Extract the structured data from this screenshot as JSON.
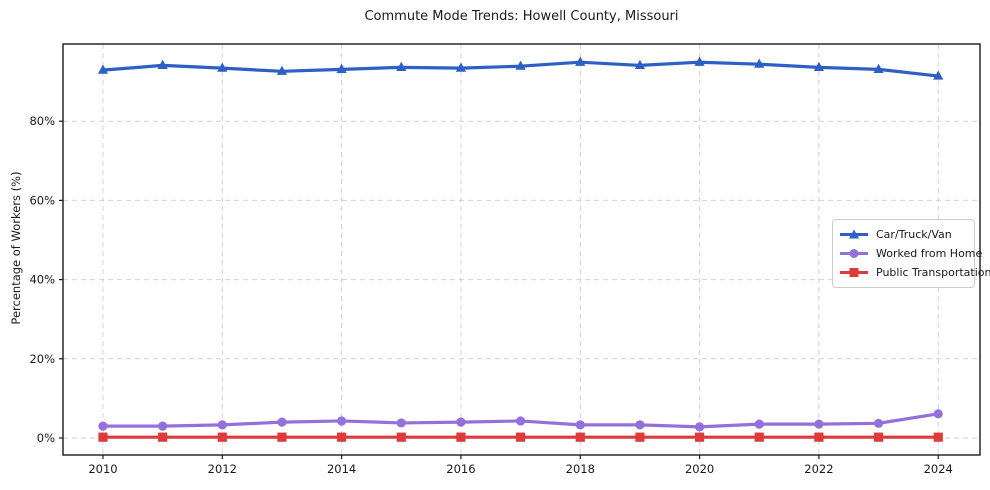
{
  "chart_data": {
    "type": "line",
    "title": "Commute Mode Trends: Howell County, Missouri",
    "xlabel": "",
    "ylabel": "Percentage of Workers (%)",
    "x": [
      2010,
      2011,
      2012,
      2013,
      2014,
      2015,
      2016,
      2017,
      2018,
      2019,
      2020,
      2021,
      2022,
      2023,
      2024
    ],
    "series": [
      {
        "name": "Car/Truck/Van",
        "color": "#2d5fc5",
        "marker": "triangle",
        "values": [
          92.9,
          94.1,
          93.4,
          92.6,
          93.1,
          93.6,
          93.4,
          93.9,
          94.9,
          94.1,
          94.9,
          94.4,
          93.6,
          93.1,
          91.4
        ]
      },
      {
        "name": "Worked from Home",
        "color": "#9370db",
        "marker": "circle",
        "values": [
          3.0,
          3.0,
          3.3,
          4.0,
          4.3,
          3.8,
          4.0,
          4.3,
          3.3,
          3.3,
          2.8,
          3.5,
          3.5,
          3.7,
          6.1
        ]
      },
      {
        "name": "Public Transportation",
        "color": "#dd3b3b",
        "marker": "square",
        "values": [
          0.2,
          0.2,
          0.2,
          0.2,
          0.2,
          0.2,
          0.2,
          0.2,
          0.2,
          0.2,
          0.2,
          0.2,
          0.2,
          0.2,
          0.2
        ]
      }
    ],
    "xticks": [
      2010,
      2012,
      2014,
      2016,
      2018,
      2020,
      2022,
      2024
    ],
    "yticks": [
      0,
      20,
      40,
      60,
      80
    ],
    "ytick_suffix": "%",
    "xlim": [
      2009.33,
      2024.7
    ],
    "ylim": [
      -4.3,
      99.5
    ],
    "grid": true,
    "grid_style": "dashed",
    "legend_position": "right-middle",
    "axis_color": "#1a1a1a",
    "grid_color": "#d2d2d2"
  }
}
